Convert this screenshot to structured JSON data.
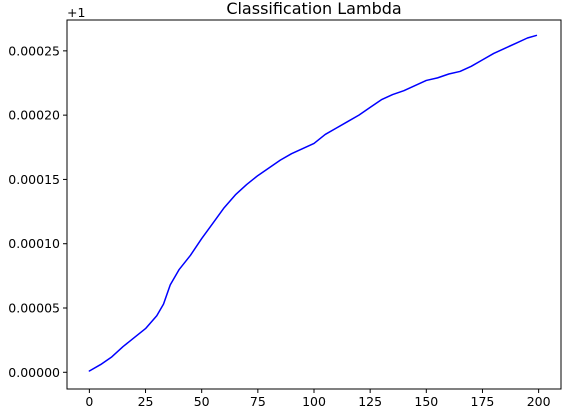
{
  "chart_data": {
    "type": "line",
    "title": "Classification Lambda",
    "xlabel": "",
    "ylabel": "",
    "y_offset_label": "+1",
    "xlim": [
      -9.96,
      209.96
    ],
    "ylim": [
      -1.3e-05,
      0.000274
    ],
    "grid": false,
    "legend": "none",
    "xticks": [
      0,
      25,
      50,
      75,
      100,
      125,
      150,
      175,
      200
    ],
    "xtick_labels": [
      "0",
      "25",
      "50",
      "75",
      "100",
      "125",
      "150",
      "175",
      "200"
    ],
    "yticks": [
      0,
      5e-05,
      0.0001,
      0.00015,
      0.0002,
      0.00025
    ],
    "ytick_labels": [
      "0.00000",
      "0.00005",
      "0.00010",
      "0.00015",
      "0.00020",
      "0.00025"
    ],
    "series": [
      {
        "name": "",
        "color": "#0000ff",
        "x": [
          0,
          5,
          10,
          15,
          20,
          25,
          30,
          33,
          36,
          40,
          45,
          50,
          55,
          60,
          65,
          70,
          75,
          80,
          85,
          90,
          95,
          100,
          105,
          110,
          115,
          120,
          125,
          130,
          135,
          140,
          145,
          150,
          155,
          160,
          165,
          170,
          175,
          180,
          185,
          190,
          195,
          199
        ],
        "y": [
          1e-06,
          6e-06,
          1.2e-05,
          2e-05,
          2.7e-05,
          3.4e-05,
          4.4e-05,
          5.3e-05,
          6.8e-05,
          8e-05,
          9.1e-05,
          0.000104,
          0.000116,
          0.000128,
          0.000138,
          0.000146,
          0.000153,
          0.000159,
          0.000165,
          0.00017,
          0.000174,
          0.000178,
          0.000185,
          0.00019,
          0.000195,
          0.0002,
          0.000206,
          0.000212,
          0.000216,
          0.000219,
          0.000223,
          0.000227,
          0.000229,
          0.000232,
          0.000234,
          0.000238,
          0.000243,
          0.000248,
          0.000252,
          0.000256,
          0.00026,
          0.000262
        ]
      }
    ]
  }
}
